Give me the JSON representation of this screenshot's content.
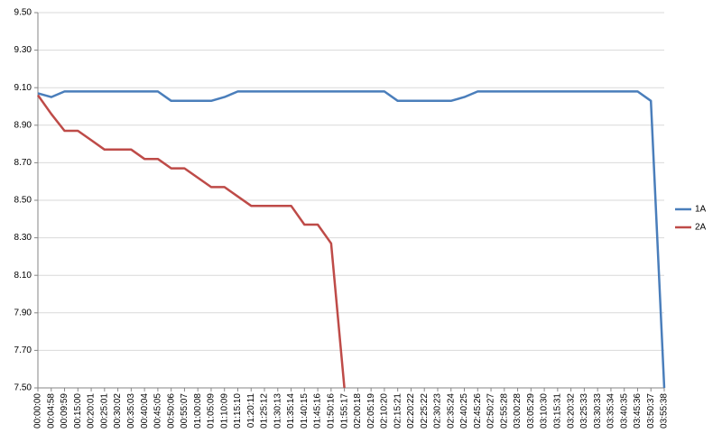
{
  "chart_data": {
    "type": "line",
    "categories": [
      "00:00:00",
      "00:04:58",
      "00:09:59",
      "00:15:00",
      "00:20:01",
      "00:25:01",
      "00:30:02",
      "00:35:03",
      "00:40:04",
      "00:45:05",
      "00:50:06",
      "00:55:07",
      "01:00:08",
      "01:05:09",
      "01:10:09",
      "01:15:10",
      "01:20:11",
      "01:25:12",
      "01:30:13",
      "01:35:14",
      "01:40:15",
      "01:45:16",
      "01:50:16",
      "01:55:17",
      "02:00:18",
      "02:05:19",
      "02:10:20",
      "02:15:21",
      "02:20:22",
      "02:25:22",
      "02:30:23",
      "02:35:24",
      "02:40:25",
      "02:45:26",
      "02:50:27",
      "02:55:28",
      "03:00:28",
      "03:05:29",
      "03:10:30",
      "03:15:31",
      "03:20:32",
      "03:25:33",
      "03:30:33",
      "03:35:34",
      "03:40:35",
      "03:45:36",
      "03:50:37",
      "03:55:38"
    ],
    "series": [
      {
        "name": "1A",
        "color": "#4a7ebb",
        "values": [
          9.07,
          9.05,
          9.08,
          9.08,
          9.08,
          9.08,
          9.08,
          9.08,
          9.08,
          9.08,
          9.03,
          9.03,
          9.03,
          9.03,
          9.05,
          9.08,
          9.08,
          9.08,
          9.08,
          9.08,
          9.08,
          9.08,
          9.08,
          9.08,
          9.08,
          9.08,
          9.08,
          9.03,
          9.03,
          9.03,
          9.03,
          9.03,
          9.05,
          9.08,
          9.08,
          9.08,
          9.08,
          9.08,
          9.08,
          9.08,
          9.08,
          9.08,
          9.08,
          9.08,
          9.08,
          9.08,
          9.03,
          7.5
        ]
      },
      {
        "name": "2A",
        "color": "#be4b48",
        "values": [
          9.06,
          8.96,
          8.87,
          8.87,
          8.82,
          8.77,
          8.77,
          8.77,
          8.72,
          8.72,
          8.67,
          8.67,
          8.62,
          8.57,
          8.57,
          8.52,
          8.47,
          8.47,
          8.47,
          8.47,
          8.37,
          8.37,
          8.27,
          7.5,
          null,
          null,
          null,
          null,
          null,
          null,
          null,
          null,
          null,
          null,
          null,
          null,
          null,
          null,
          null,
          null,
          null,
          null,
          null,
          null,
          null,
          null,
          null,
          null
        ]
      }
    ],
    "ylim": [
      7.5,
      9.5
    ],
    "yticks": [
      {
        "value": 7.5,
        "label": "7.50"
      },
      {
        "value": 7.7,
        "label": "7.70"
      },
      {
        "value": 7.9,
        "label": "7.90"
      },
      {
        "value": 8.1,
        "label": "8.10"
      },
      {
        "value": 8.3,
        "label": "8.30"
      },
      {
        "value": 8.5,
        "label": "8.50"
      },
      {
        "value": 8.7,
        "label": "8.70"
      },
      {
        "value": 8.9,
        "label": "8.90"
      },
      {
        "value": 9.1,
        "label": "9.10"
      },
      {
        "value": 9.3,
        "label": "9.30"
      },
      {
        "value": 9.5,
        "label": "9.50"
      }
    ],
    "grid": true,
    "legend": "right"
  }
}
